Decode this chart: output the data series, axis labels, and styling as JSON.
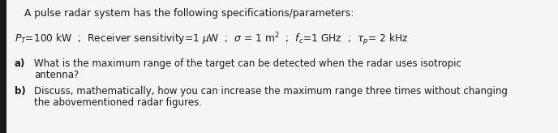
{
  "bg_color": "#f5f5f3",
  "border_color": "#1a1a1a",
  "title_line": "A pulse radar system has the following specifications/parameters:",
  "param_label": "P",
  "param_rest": "=100 kW  ;  Receiver sensitivity=1 μW  ;  σ = 1 m²  ;  f",
  "param_end": "=1 GHz  ;  τ",
  "param_final": "= 2 kHz",
  "q_a_label": "a)",
  "q_a_line1": "What is the maximum range of the target can be detected when the radar uses isotropic",
  "q_a_line2": "antenna?",
  "q_b_label": "b)",
  "q_b_line1": "Discuss, mathematically, how you can increase the maximum range three times without changing",
  "q_b_line2": "the abovementioned radar figures.",
  "font_size_title": 8.8,
  "font_size_params": 8.8,
  "font_size_questions": 8.5,
  "text_color": "#1a1a1a",
  "fig_width": 6.88,
  "fig_height": 1.64,
  "dpi": 100
}
